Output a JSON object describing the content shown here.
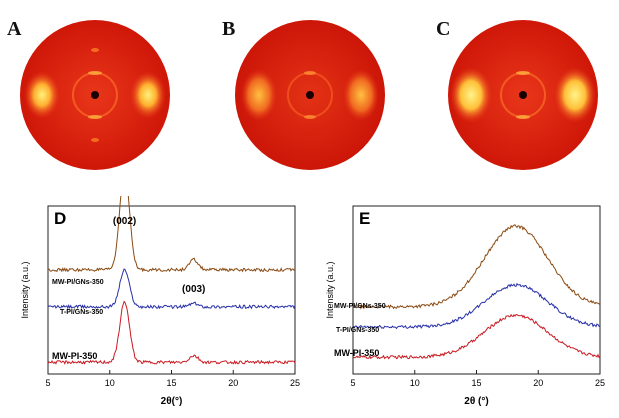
{
  "panels": {
    "a": {
      "letter": "A"
    },
    "b": {
      "letter": "B"
    },
    "c": {
      "letter": "C"
    },
    "d": {
      "letter": "D"
    },
    "e": {
      "letter": "E"
    }
  },
  "pattern_colors": {
    "background": "#d81b0a",
    "center": "#ff5a1e",
    "hot": "#fff06a",
    "ring": "#ff8a2a"
  },
  "chart_data": [
    {
      "id": "D",
      "type": "line",
      "xlabel": "2θ(°)",
      "ylabel": "Intensity (a.u.)",
      "xlim": [
        5,
        25
      ],
      "xticks": [
        5,
        10,
        15,
        20,
        25
      ],
      "annotations": [
        {
          "text": "(002)",
          "x": 11.2
        },
        {
          "text": "(003)",
          "x": 16.8
        }
      ],
      "series": [
        {
          "name": "MW-PI/GNs-350",
          "color": "#8a4a12",
          "offset": 0.62,
          "peaks": [
            {
              "x": 11.2,
              "h": 0.6,
              "w": 0.55
            },
            {
              "x": 16.8,
              "h": 0.06,
              "w": 0.5
            }
          ]
        },
        {
          "name": "T-PI/GNs-350",
          "color": "#2730a8",
          "offset": 0.4,
          "peaks": [
            {
              "x": 11.2,
              "h": 0.22,
              "w": 0.55
            },
            {
              "x": 16.8,
              "h": 0.02,
              "w": 0.5
            }
          ]
        },
        {
          "name": "MW-PI-350",
          "color": "#c81a22",
          "offset": 0.07,
          "peaks": [
            {
              "x": 11.2,
              "h": 0.36,
              "w": 0.55
            },
            {
              "x": 16.8,
              "h": 0.04,
              "w": 0.5
            }
          ]
        }
      ]
    },
    {
      "id": "E",
      "type": "line",
      "xlabel": "2θ (°)",
      "ylabel": "Intensity (a.u.)",
      "xlim": [
        5,
        25
      ],
      "xticks": [
        5,
        10,
        15,
        20,
        25
      ],
      "series": [
        {
          "name": "MW-PI/GNs-350",
          "color": "#8a4a12",
          "offset": 0.4,
          "peaks": [
            {
              "x": 18.2,
              "h": 0.48,
              "w": 3.6
            }
          ]
        },
        {
          "name": "T-PI/GNs-350",
          "color": "#2730a8",
          "offset": 0.28,
          "peaks": [
            {
              "x": 18.2,
              "h": 0.25,
              "w": 3.6
            }
          ]
        },
        {
          "name": "MW-PI-350",
          "color": "#c81a22",
          "offset": 0.1,
          "peaks": [
            {
              "x": 18.2,
              "h": 0.25,
              "w": 3.6
            }
          ]
        }
      ]
    }
  ]
}
